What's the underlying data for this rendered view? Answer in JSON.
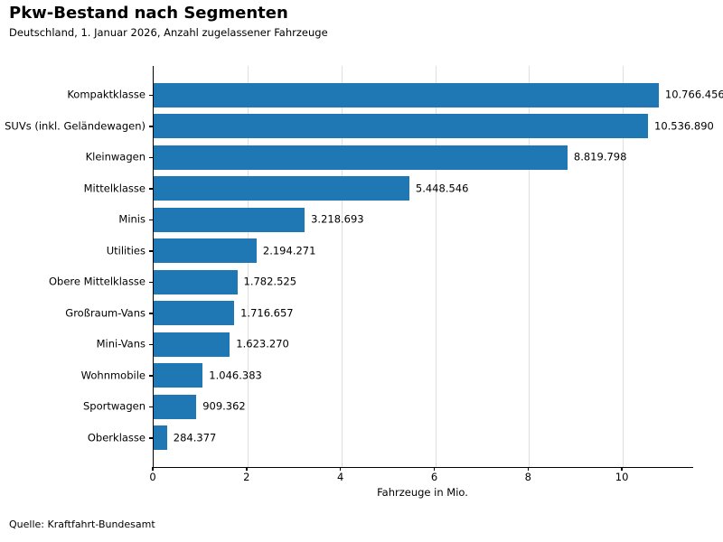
{
  "chart": {
    "title": "Pkw-Bestand nach Segmenten",
    "subtitle": "Deutschland, 1. Januar 2026, Anzahl zugelassener Fahrzeuge",
    "xlabel": "Fahrzeuge in Mio.",
    "source": "Quelle: Kraftfahrt-Bundesamt",
    "bar_color": "#1f77b4",
    "grid_color": "#dfdfdf",
    "axis_color": "#000000"
  },
  "chart_data": {
    "type": "bar",
    "orientation": "horizontal",
    "title": "Pkw-Bestand nach Segmenten",
    "subtitle": "Deutschland, 1. Januar 2026, Anzahl zugelassener Fahrzeuge",
    "xlabel": "Fahrzeuge in Mio.",
    "categories": [
      "Kompaktklasse",
      "SUVs (inkl. Geländewagen)",
      "Kleinwagen",
      "Mittelklasse",
      "Minis",
      "Utilities",
      "Obere Mittelklasse",
      "Großraum-Vans",
      "Mini-Vans",
      "Wohnmobile",
      "Sportwagen",
      "Oberklasse"
    ],
    "values": [
      10766456,
      10536890,
      8819798,
      5448546,
      3218693,
      2194271,
      1782525,
      1716657,
      1623270,
      1046383,
      909362,
      284377
    ],
    "value_labels": [
      "10.766.456",
      "10.536.890",
      "8.819.798",
      "5.448.546",
      "3.218.693",
      "2.194.271",
      "1.782.525",
      "1.716.657",
      "1.623.270",
      "1.046.383",
      "909.362",
      "284.377"
    ],
    "x_ticks": [
      0,
      2,
      4,
      6,
      8,
      10
    ],
    "xlim": [
      0,
      11.5
    ],
    "unit": "Mio.",
    "grid": true,
    "legend": false
  }
}
